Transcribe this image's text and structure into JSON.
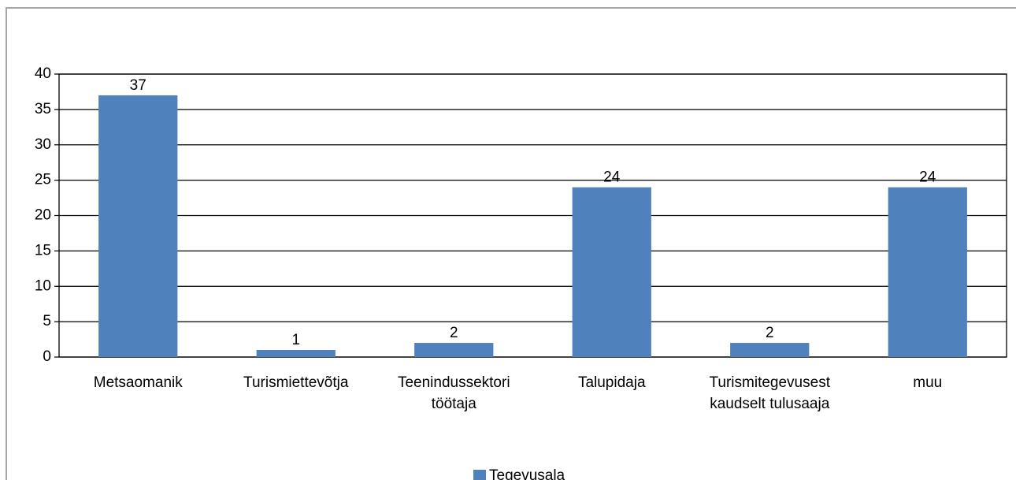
{
  "chart_data": {
    "type": "bar",
    "categories": [
      "Metsaomanik",
      "Turismiettevõtja",
      "Teenindussektori töötaja",
      "Talupidaja",
      "Turismitegevusest kaudselt tulusaaja",
      "muu"
    ],
    "series": [
      {
        "name": "Tegevusala",
        "color": "#4f81bd",
        "values": [
          37,
          1,
          2,
          24,
          2,
          24
        ]
      }
    ],
    "ylim": [
      0,
      40
    ],
    "yticks": [
      0,
      5,
      10,
      15,
      20,
      25,
      30,
      35,
      40
    ],
    "grid": true,
    "legend": "bottom"
  }
}
